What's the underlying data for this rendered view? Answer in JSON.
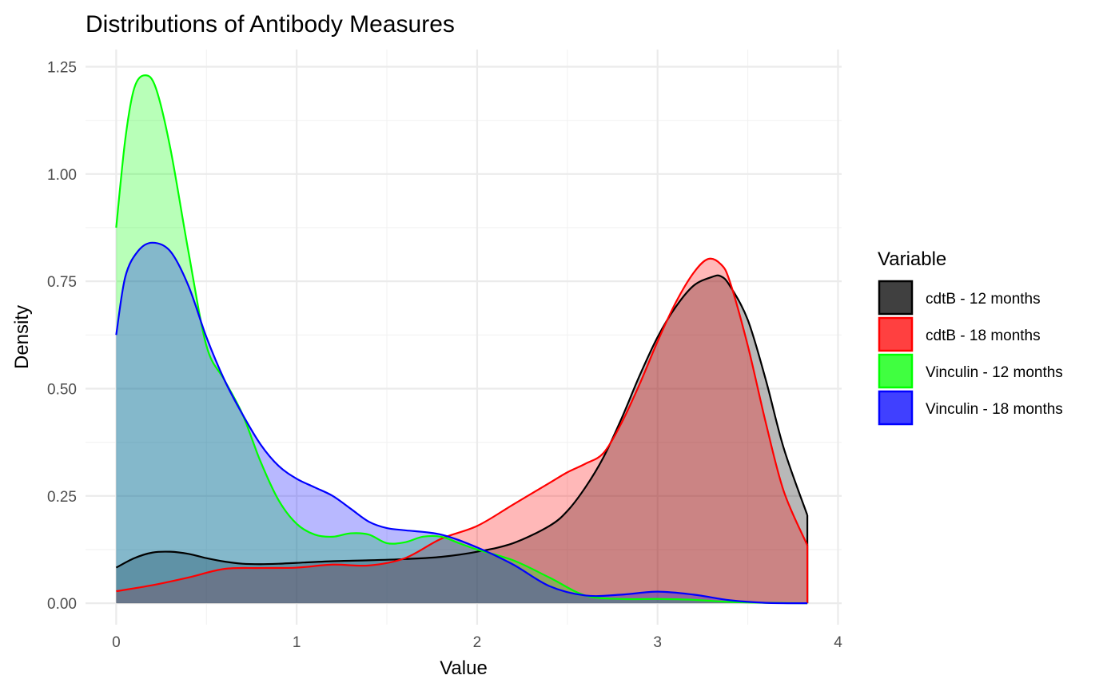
{
  "chart_data": {
    "type": "area",
    "title": "Distributions of Antibody Measures",
    "xlabel": "Value",
    "ylabel": "Density",
    "xlim": [
      -0.17,
      4.02
    ],
    "ylim": [
      -0.05,
      1.29
    ],
    "x_ticks": [
      0,
      1,
      2,
      3,
      4
    ],
    "x_tick_labels": [
      "0",
      "1",
      "2",
      "3",
      "4"
    ],
    "y_ticks": [
      0,
      0.25,
      0.5,
      0.75,
      1.0,
      1.25
    ],
    "y_tick_labels": [
      "0.00",
      "0.25",
      "0.50",
      "0.75",
      "1.00",
      "1.25"
    ],
    "grid": true,
    "legend": {
      "title": "Variable",
      "position": "right"
    },
    "fill_opacity": 0.28,
    "series": [
      {
        "name": "cdtB - 12 months",
        "color": "#000000",
        "fill": "#000000",
        "x": [
          0,
          0.1,
          0.2,
          0.3,
          0.4,
          0.5,
          0.6,
          0.7,
          0.8,
          0.9,
          1.0,
          1.2,
          1.4,
          1.6,
          1.8,
          2.0,
          2.2,
          2.4,
          2.5,
          2.6,
          2.7,
          2.8,
          2.9,
          3.0,
          3.1,
          3.2,
          3.3,
          3.35,
          3.4,
          3.5,
          3.6,
          3.7,
          3.83
        ],
        "y": [
          0.083,
          0.105,
          0.118,
          0.12,
          0.115,
          0.105,
          0.097,
          0.092,
          0.091,
          0.092,
          0.094,
          0.098,
          0.1,
          0.103,
          0.108,
          0.12,
          0.14,
          0.18,
          0.215,
          0.27,
          0.34,
          0.43,
          0.53,
          0.62,
          0.69,
          0.74,
          0.76,
          0.762,
          0.74,
          0.66,
          0.52,
          0.36,
          0.205
        ]
      },
      {
        "name": "cdtB - 18 months",
        "color": "#ff0000",
        "fill": "#ff0000",
        "x": [
          0,
          0.2,
          0.4,
          0.6,
          0.8,
          1.0,
          1.2,
          1.4,
          1.6,
          1.8,
          2.0,
          2.2,
          2.4,
          2.5,
          2.6,
          2.7,
          2.8,
          2.9,
          3.0,
          3.1,
          3.2,
          3.28,
          3.35,
          3.4,
          3.5,
          3.6,
          3.7,
          3.83
        ],
        "y": [
          0.028,
          0.042,
          0.06,
          0.08,
          0.082,
          0.083,
          0.09,
          0.088,
          0.105,
          0.15,
          0.18,
          0.23,
          0.28,
          0.305,
          0.325,
          0.35,
          0.42,
          0.51,
          0.61,
          0.7,
          0.77,
          0.802,
          0.79,
          0.75,
          0.6,
          0.42,
          0.26,
          0.135
        ]
      },
      {
        "name": "Vinculin - 12 months",
        "color": "#00ff00",
        "fill": "#00ff00",
        "x": [
          0,
          0.05,
          0.1,
          0.16,
          0.22,
          0.3,
          0.4,
          0.5,
          0.6,
          0.7,
          0.8,
          0.9,
          1.0,
          1.1,
          1.2,
          1.3,
          1.4,
          1.5,
          1.6,
          1.7,
          1.8,
          1.9,
          2.0,
          2.2,
          2.4,
          2.6,
          2.8,
          3.0,
          3.2,
          3.4,
          3.6,
          3.83
        ],
        "y": [
          0.875,
          1.08,
          1.2,
          1.23,
          1.2,
          1.06,
          0.82,
          0.6,
          0.52,
          0.44,
          0.33,
          0.24,
          0.185,
          0.16,
          0.155,
          0.163,
          0.16,
          0.14,
          0.142,
          0.155,
          0.155,
          0.14,
          0.125,
          0.1,
          0.06,
          0.018,
          0.01,
          0.01,
          0.008,
          0.003,
          0.001,
          0.0
        ]
      },
      {
        "name": "Vinculin - 18 months",
        "color": "#0000ff",
        "fill": "#0000ff",
        "x": [
          0,
          0.05,
          0.12,
          0.2,
          0.3,
          0.4,
          0.5,
          0.6,
          0.7,
          0.8,
          0.9,
          1.0,
          1.1,
          1.2,
          1.3,
          1.4,
          1.5,
          1.6,
          1.8,
          2.0,
          2.2,
          2.4,
          2.6,
          2.8,
          3.0,
          3.2,
          3.4,
          3.6,
          3.83
        ],
        "y": [
          0.625,
          0.76,
          0.82,
          0.84,
          0.82,
          0.74,
          0.62,
          0.52,
          0.44,
          0.37,
          0.32,
          0.29,
          0.27,
          0.25,
          0.22,
          0.19,
          0.175,
          0.17,
          0.16,
          0.13,
          0.09,
          0.04,
          0.018,
          0.02,
          0.027,
          0.02,
          0.007,
          0.001,
          0.0
        ]
      }
    ]
  }
}
